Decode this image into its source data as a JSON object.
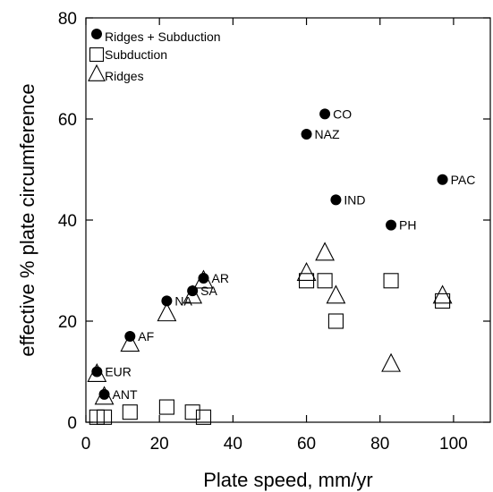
{
  "chart_data": {
    "type": "scatter",
    "xlabel": "Plate speed, mm/yr",
    "ylabel": "effective % plate circumference",
    "xlim": [
      0,
      110
    ],
    "ylim": [
      0,
      80
    ],
    "xticks": [
      0,
      20,
      40,
      60,
      80,
      100
    ],
    "yticks": [
      0,
      20,
      40,
      60,
      80
    ],
    "grid": false,
    "legend_position": "top-left",
    "series": [
      {
        "name": "Ridges + Subduction",
        "marker": "filled-circle",
        "points": [
          {
            "label": "CO",
            "x": 65,
            "y": 61
          },
          {
            "label": "NAZ",
            "x": 60,
            "y": 57
          },
          {
            "label": "PAC",
            "x": 97,
            "y": 48
          },
          {
            "label": "IND",
            "x": 68,
            "y": 44
          },
          {
            "label": "PH",
            "x": 83,
            "y": 39
          },
          {
            "label": "AR",
            "x": 32,
            "y": 28.5
          },
          {
            "label": "SA",
            "x": 29,
            "y": 26
          },
          {
            "label": "NA",
            "x": 22,
            "y": 24
          },
          {
            "label": "AF",
            "x": 12,
            "y": 17
          },
          {
            "label": "EUR",
            "x": 3,
            "y": 10
          },
          {
            "label": "ANT",
            "x": 5,
            "y": 5.5
          }
        ]
      },
      {
        "name": "Subduction",
        "marker": "open-square",
        "points": [
          {
            "x": 3,
            "y": 1
          },
          {
            "x": 5,
            "y": 1
          },
          {
            "x": 12,
            "y": 2
          },
          {
            "x": 22,
            "y": 3
          },
          {
            "x": 29,
            "y": 2
          },
          {
            "x": 32,
            "y": 1
          },
          {
            "x": 60,
            "y": 28
          },
          {
            "x": 65,
            "y": 28
          },
          {
            "x": 68,
            "y": 20
          },
          {
            "x": 83,
            "y": 28
          },
          {
            "x": 97,
            "y": 24
          }
        ]
      },
      {
        "name": "Ridges",
        "marker": "open-triangle",
        "points": [
          {
            "x": 3,
            "y": 9.5
          },
          {
            "x": 5,
            "y": 5
          },
          {
            "x": 12,
            "y": 15.5
          },
          {
            "x": 22,
            "y": 21.5
          },
          {
            "x": 29,
            "y": 25
          },
          {
            "x": 32,
            "y": 28
          },
          {
            "x": 60,
            "y": 29.5
          },
          {
            "x": 65,
            "y": 33.5
          },
          {
            "x": 68,
            "y": 25
          },
          {
            "x": 83,
            "y": 11.5
          },
          {
            "x": 97,
            "y": 25
          }
        ]
      }
    ]
  }
}
